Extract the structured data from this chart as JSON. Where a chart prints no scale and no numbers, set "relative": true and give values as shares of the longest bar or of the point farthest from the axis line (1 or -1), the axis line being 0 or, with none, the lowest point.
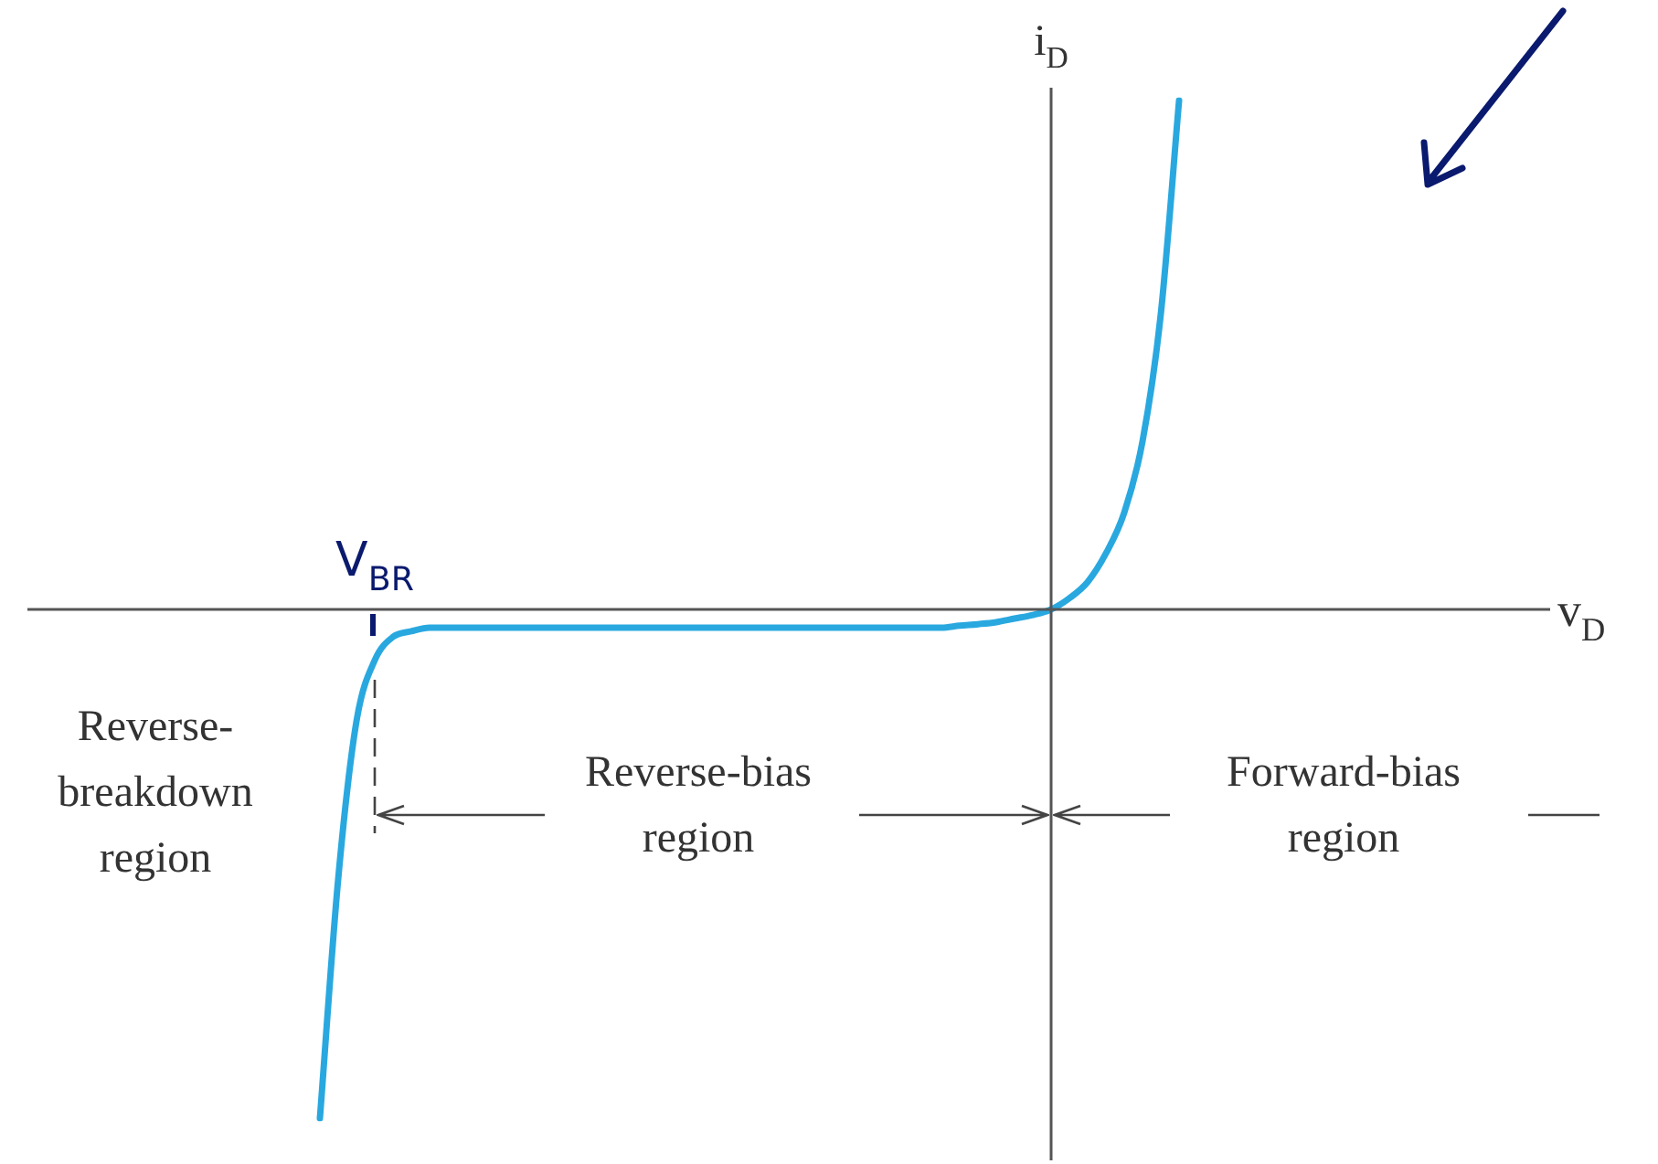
{
  "chart_data": {
    "type": "line",
    "relative": true,
    "xlabel": "v$_{D}$",
    "ylabel": "i$_{D}$",
    "categories": [
      null,
      null,
      null,
      null,
      null,
      null,
      null,
      null,
      null,
      null,
      null,
      null,
      null,
      null,
      null,
      null,
      null,
      null,
      null,
      null,
      null,
      null,
      null,
      null,
      null,
      null,
      null,
      null,
      null,
      null,
      null,
      null,
      null,
      null,
      null,
      null,
      null,
      null,
      null,
      null,
      null,
      null,
      null,
      null,
      null,
      null,
      null,
      null,
      null,
      null,
      null,
      null,
      null,
      null,
      null,
      null,
      null,
      null,
      null,
      null,
      null,
      null,
      null,
      null,
      null,
      null,
      null,
      null,
      null,
      null,
      null,
      null,
      null,
      null,
      null,
      null,
      null,
      null,
      null,
      null,
      null,
      null,
      null,
      null,
      null,
      null
    ],
    "series": [
      {
        "color": "#29a8e0",
        "values": [
          null,
          null,
          null,
          null,
          null,
          null,
          null,
          null,
          null,
          null,
          null,
          null,
          null,
          null,
          null,
          null,
          -1,
          -0.53,
          -0.22,
          -0.1,
          -0.054,
          -0.043,
          -0.036,
          -0.036,
          -0.036,
          -0.036,
          -0.036,
          -0.036,
          -0.036,
          -0.036,
          -0.036,
          -0.036,
          -0.036,
          -0.036,
          -0.036,
          -0.036,
          -0.036,
          -0.036,
          -0.036,
          -0.036,
          -0.036,
          -0.036,
          -0.036,
          -0.036,
          -0.036,
          -0.036,
          -0.036,
          -0.036,
          -0.036,
          -0.036,
          -0.036,
          -0.032,
          -0.029,
          -0.025,
          -0.018,
          -0.011,
          0,
          0.022,
          0.054,
          0.11,
          0.19,
          0.33,
          0.58,
          1,
          null,
          null,
          null,
          null,
          null,
          null,
          null,
          null,
          null,
          null,
          null,
          null,
          null,
          null,
          null,
          null,
          null,
          null,
          null,
          null,
          null,
          null
        ]
      }
    ],
    "annotations": [
      "V$_{BR}$",
      "Reverse-\nbreakdown\nregion",
      "Reverse-bias\nregion",
      "Forward-bias\nregion"
    ],
    "legend": false,
    "marker": "none",
    "line_style": "solid"
  }
}
